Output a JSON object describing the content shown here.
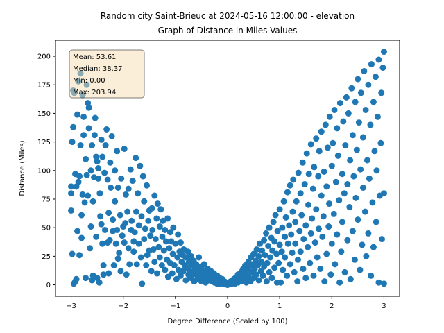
{
  "chart_data": {
    "type": "scatter",
    "title": "Random city Saint-Brieuc at 2024-05-16 12:00:00  - elevation",
    "subtitle": "Graph of Distance in Miles Values",
    "xlabel": "Degree Difference (Scaled by 100)",
    "ylabel": "Distance (Miles)",
    "xlim": [
      -3.3,
      3.3
    ],
    "ylim": [
      -10,
      214
    ],
    "xticks": [
      -3,
      -2,
      -1,
      0,
      1,
      2,
      3
    ],
    "yticks": [
      0,
      25,
      50,
      75,
      100,
      125,
      150,
      175,
      200
    ],
    "grid": false,
    "marker_color": "#1f77b4",
    "stats": {
      "mean": "Mean: 53.61",
      "median": "Median: 38.37",
      "min": "Min: 0.00",
      "max": "Max: 203.94"
    },
    "stats_box_position": "top-left",
    "points": [
      [
        -3.0,
        86
      ],
      [
        -3.0,
        80
      ],
      [
        -3.0,
        65
      ],
      [
        -2.98,
        27
      ],
      [
        -2.98,
        125
      ],
      [
        -2.96,
        138
      ],
      [
        -2.96,
        170
      ],
      [
        -2.95,
        1
      ],
      [
        -2.94,
        168
      ],
      [
        -2.92,
        3
      ],
      [
        -2.92,
        97
      ],
      [
        -2.9,
        86
      ],
      [
        -2.9,
        5
      ],
      [
        -2.88,
        149
      ],
      [
        -2.88,
        47
      ],
      [
        -2.86,
        178
      ],
      [
        -2.86,
        90
      ],
      [
        -2.84,
        95
      ],
      [
        -2.84,
        26
      ],
      [
        -2.82,
        122
      ],
      [
        -2.82,
        185
      ],
      [
        -2.8,
        41
      ],
      [
        -2.8,
        61
      ],
      [
        -2.78,
        79
      ],
      [
        -2.78,
        166
      ],
      [
        -2.76,
        147
      ],
      [
        -2.76,
        131
      ],
      [
        -2.74,
        72
      ],
      [
        -2.72,
        110
      ],
      [
        -2.72,
        6
      ],
      [
        -2.7,
        175
      ],
      [
        -2.7,
        96
      ],
      [
        -2.68,
        159
      ],
      [
        -2.68,
        78
      ],
      [
        -2.66,
        155
      ],
      [
        -2.66,
        137
      ],
      [
        -2.64,
        32
      ],
      [
        -2.62,
        51
      ],
      [
        -2.62,
        100
      ],
      [
        -2.6,
        4
      ],
      [
        -2.6,
        122
      ],
      [
        -2.58,
        8
      ],
      [
        -2.58,
        73
      ],
      [
        -2.56,
        94
      ],
      [
        -2.55,
        131
      ],
      [
        -2.54,
        146
      ],
      [
        -2.52,
        42
      ],
      [
        -2.52,
        112
      ],
      [
        -2.5,
        6
      ],
      [
        -2.5,
        108
      ],
      [
        -2.48,
        93
      ],
      [
        -2.48,
        102
      ],
      [
        -2.46,
        2
      ],
      [
        -2.45,
        80
      ],
      [
        -2.44,
        60
      ],
      [
        -2.42,
        127
      ],
      [
        -2.42,
        53
      ],
      [
        -2.4,
        36
      ],
      [
        -2.4,
        112
      ],
      [
        -2.38,
        17
      ],
      [
        -2.38,
        9
      ],
      [
        -2.36,
        98
      ],
      [
        -2.35,
        48
      ],
      [
        -2.34,
        122
      ],
      [
        -2.32,
        136
      ],
      [
        -2.3,
        37
      ],
      [
        -2.3,
        92
      ],
      [
        -2.28,
        63
      ],
      [
        -2.28,
        10
      ],
      [
        -2.26,
        39
      ],
      [
        -2.25,
        107
      ],
      [
        -2.24,
        85
      ],
      [
        -2.22,
        130
      ],
      [
        -2.2,
        47
      ],
      [
        -2.2,
        57
      ],
      [
        -2.18,
        17
      ],
      [
        -2.16,
        73
      ],
      [
        -2.16,
        100
      ],
      [
        -2.14,
        36
      ],
      [
        -2.12,
        117
      ],
      [
        -2.12,
        48
      ],
      [
        -2.1,
        23
      ],
      [
        -2.1,
        85
      ],
      [
        -2.08,
        28
      ],
      [
        -2.06,
        61
      ],
      [
        -2.05,
        12
      ],
      [
        -2.04,
        93
      ],
      [
        -2.02,
        43
      ],
      [
        -2.0,
        51
      ],
      [
        -1.98,
        37
      ],
      [
        -1.98,
        119
      ],
      [
        -1.96,
        54
      ],
      [
        -1.95,
        79
      ],
      [
        -1.94,
        9
      ],
      [
        -1.92,
        64
      ],
      [
        -1.9,
        32
      ],
      [
        -1.9,
        84
      ],
      [
        -1.88,
        18
      ],
      [
        -1.86,
        101
      ],
      [
        -1.85,
        48
      ],
      [
        -1.84,
        56
      ],
      [
        -1.82,
        91
      ],
      [
        -1.8,
        38
      ],
      [
        -1.8,
        29
      ],
      [
        -1.78,
        46
      ],
      [
        -1.76,
        111
      ],
      [
        -1.75,
        64
      ],
      [
        -1.74,
        18
      ],
      [
        -1.72,
        80
      ],
      [
        -1.7,
        36
      ],
      [
        -1.7,
        52
      ],
      [
        -1.68,
        104
      ],
      [
        -1.66,
        24
      ],
      [
        -1.65,
        60
      ],
      [
        -1.64,
        1
      ],
      [
        -1.62,
        95
      ],
      [
        -1.6,
        73
      ],
      [
        -1.6,
        40
      ],
      [
        -1.58,
        49
      ],
      [
        -1.56,
        17
      ],
      [
        -1.55,
        87
      ],
      [
        -1.54,
        26
      ],
      [
        -1.52,
        56
      ],
      [
        -1.5,
        30
      ],
      [
        -1.5,
        65
      ],
      [
        -1.48,
        43
      ],
      [
        -1.46,
        12
      ],
      [
        -1.45,
        67
      ],
      [
        -1.44,
        48
      ],
      [
        -1.42,
        31
      ],
      [
        -1.4,
        78
      ],
      [
        -1.4,
        20
      ],
      [
        -1.38,
        40
      ],
      [
        -1.36,
        58
      ],
      [
        -1.35,
        10
      ],
      [
        -1.34,
        71
      ],
      [
        -1.32,
        33
      ],
      [
        -1.3,
        51
      ],
      [
        -1.3,
        24
      ],
      [
        -1.28,
        66
      ],
      [
        -1.26,
        17
      ],
      [
        -1.25,
        42
      ],
      [
        -1.24,
        56
      ],
      [
        -1.22,
        30
      ],
      [
        -1.2,
        48
      ],
      [
        -1.2,
        13
      ],
      [
        -1.18,
        38
      ],
      [
        -1.16,
        22
      ],
      [
        -1.15,
        58
      ],
      [
        -1.14,
        7
      ],
      [
        -1.12,
        32
      ],
      [
        -1.1,
        46
      ],
      [
        -1.1,
        19
      ],
      [
        -1.08,
        38
      ],
      [
        -1.06,
        10
      ],
      [
        -1.05,
        27
      ],
      [
        -1.04,
        50
      ],
      [
        -1.02,
        17
      ],
      [
        -1.0,
        36
      ],
      [
        -0.98,
        5
      ],
      [
        -0.96,
        24
      ],
      [
        -0.95,
        44
      ],
      [
        -0.94,
        13
      ],
      [
        -0.92,
        29
      ],
      [
        -0.9,
        8
      ],
      [
        -0.9,
        37
      ],
      [
        -0.88,
        20
      ],
      [
        -0.86,
        26
      ],
      [
        -0.85,
        12
      ],
      [
        -0.84,
        31
      ],
      [
        -0.82,
        17
      ],
      [
        -0.8,
        4
      ],
      [
        -0.8,
        24
      ],
      [
        -0.78,
        15
      ],
      [
        -0.76,
        29
      ],
      [
        -0.75,
        9
      ],
      [
        -0.74,
        20
      ],
      [
        -0.72,
        12
      ],
      [
        -0.7,
        25
      ],
      [
        -0.7,
        6
      ],
      [
        -0.68,
        17
      ],
      [
        -0.66,
        10
      ],
      [
        -0.65,
        21
      ],
      [
        -0.64,
        3
      ],
      [
        -0.62,
        14
      ],
      [
        -0.6,
        9
      ],
      [
        -0.6,
        18
      ],
      [
        -0.58,
        5
      ],
      [
        -0.56,
        12
      ],
      [
        -0.55,
        24
      ],
      [
        -0.54,
        7
      ],
      [
        -0.52,
        16
      ],
      [
        -0.5,
        3
      ],
      [
        -0.5,
        10
      ],
      [
        -0.48,
        13
      ],
      [
        -0.46,
        6
      ],
      [
        -0.45,
        18
      ],
      [
        -0.44,
        9
      ],
      [
        -0.42,
        2
      ],
      [
        -0.4,
        11
      ],
      [
        -0.4,
        7
      ],
      [
        -0.38,
        14
      ],
      [
        -0.36,
        4
      ],
      [
        -0.35,
        9
      ],
      [
        -0.34,
        6
      ],
      [
        -0.32,
        12
      ],
      [
        -0.3,
        3
      ],
      [
        -0.3,
        8
      ],
      [
        -0.28,
        5
      ],
      [
        -0.26,
        10
      ],
      [
        -0.25,
        2
      ],
      [
        -0.24,
        7
      ],
      [
        -0.22,
        4
      ],
      [
        -0.2,
        8
      ],
      [
        -0.2,
        1
      ],
      [
        -0.18,
        5
      ],
      [
        -0.16,
        3
      ],
      [
        -0.15,
        6
      ],
      [
        -0.14,
        1
      ],
      [
        -0.12,
        4
      ],
      [
        -0.1,
        2
      ],
      [
        -0.1,
        5
      ],
      [
        -0.08,
        1
      ],
      [
        -0.06,
        3
      ],
      [
        -0.05,
        0.5
      ],
      [
        -0.04,
        2
      ],
      [
        -0.02,
        1
      ],
      [
        0.0,
        0
      ],
      [
        0.02,
        1
      ],
      [
        0.04,
        2
      ],
      [
        0.05,
        0.5
      ],
      [
        0.06,
        3
      ],
      [
        0.08,
        1
      ],
      [
        0.1,
        4
      ],
      [
        0.1,
        2
      ],
      [
        0.12,
        5
      ],
      [
        0.14,
        1
      ],
      [
        0.15,
        6
      ],
      [
        0.16,
        3
      ],
      [
        0.18,
        7
      ],
      [
        0.2,
        2
      ],
      [
        0.2,
        9
      ],
      [
        0.22,
        4
      ],
      [
        0.24,
        10
      ],
      [
        0.25,
        6
      ],
      [
        0.26,
        3
      ],
      [
        0.28,
        12
      ],
      [
        0.3,
        8
      ],
      [
        0.3,
        14
      ],
      [
        0.32,
        5
      ],
      [
        0.34,
        17
      ],
      [
        0.35,
        10
      ],
      [
        0.36,
        2
      ],
      [
        0.38,
        13
      ],
      [
        0.4,
        20
      ],
      [
        0.4,
        7
      ],
      [
        0.42,
        16
      ],
      [
        0.44,
        3
      ],
      [
        0.45,
        24
      ],
      [
        0.46,
        11
      ],
      [
        0.48,
        18
      ],
      [
        0.5,
        6
      ],
      [
        0.5,
        27
      ],
      [
        0.52,
        14
      ],
      [
        0.54,
        21
      ],
      [
        0.55,
        9
      ],
      [
        0.56,
        31
      ],
      [
        0.58,
        17
      ],
      [
        0.6,
        4
      ],
      [
        0.6,
        25
      ],
      [
        0.62,
        36
      ],
      [
        0.64,
        12
      ],
      [
        0.65,
        20
      ],
      [
        0.66,
        30
      ],
      [
        0.68,
        8
      ],
      [
        0.7,
        39
      ],
      [
        0.7,
        16
      ],
      [
        0.72,
        26
      ],
      [
        0.74,
        45
      ],
      [
        0.75,
        3
      ],
      [
        0.76,
        19
      ],
      [
        0.78,
        34
      ],
      [
        0.8,
        11
      ],
      [
        0.8,
        50
      ],
      [
        0.82,
        24
      ],
      [
        0.84,
        41
      ],
      [
        0.85,
        6
      ],
      [
        0.86,
        30
      ],
      [
        0.88,
        55
      ],
      [
        0.9,
        15
      ],
      [
        0.9,
        38
      ],
      [
        0.92,
        61
      ],
      [
        0.94,
        27
      ],
      [
        0.95,
        2
      ],
      [
        0.96,
        47
      ],
      [
        0.98,
        19
      ],
      [
        1.0,
        35
      ],
      [
        1.0,
        66
      ],
      [
        1.02,
        2
      ],
      [
        1.04,
        29
      ],
      [
        1.05,
        50
      ],
      [
        1.06,
        13
      ],
      [
        1.08,
        73
      ],
      [
        1.1,
        42
      ],
      [
        1.1,
        24
      ],
      [
        1.12,
        59
      ],
      [
        1.14,
        8
      ],
      [
        1.15,
        81
      ],
      [
        1.16,
        36
      ],
      [
        1.18,
        52
      ],
      [
        1.2,
        18
      ],
      [
        1.2,
        87
      ],
      [
        1.22,
        44
      ],
      [
        1.24,
        28
      ],
      [
        1.25,
        64
      ],
      [
        1.26,
        92
      ],
      [
        1.28,
        11
      ],
      [
        1.3,
        55
      ],
      [
        1.3,
        36
      ],
      [
        1.32,
        73
      ],
      [
        1.34,
        3
      ],
      [
        1.35,
        22
      ],
      [
        1.36,
        98
      ],
      [
        1.38,
        47
      ],
      [
        1.4,
        80
      ],
      [
        1.4,
        29
      ],
      [
        1.42,
        61
      ],
      [
        1.44,
        107
      ],
      [
        1.45,
        14
      ],
      [
        1.46,
        40
      ],
      [
        1.48,
        88
      ],
      [
        1.5,
        52
      ],
      [
        1.5,
        6
      ],
      [
        1.52,
        115
      ],
      [
        1.54,
        33
      ],
      [
        1.55,
        70
      ],
      [
        1.56,
        97
      ],
      [
        1.58,
        19
      ],
      [
        1.6,
        45
      ],
      [
        1.6,
        123
      ],
      [
        1.62,
        58
      ],
      [
        1.64,
        84
      ],
      [
        1.65,
        8
      ],
      [
        1.66,
        103
      ],
      [
        1.68,
        37
      ],
      [
        1.7,
        128
      ],
      [
        1.7,
        66
      ],
      [
        1.72,
        24
      ],
      [
        1.74,
        95
      ],
      [
        1.75,
        49
      ],
      [
        1.76,
        117
      ],
      [
        1.78,
        14
      ],
      [
        1.8,
        78
      ],
      [
        1.8,
        134
      ],
      [
        1.82,
        42
      ],
      [
        1.84,
        60
      ],
      [
        1.85,
        99
      ],
      [
        1.86,
        3
      ],
      [
        1.88,
        140
      ],
      [
        1.9,
        27
      ],
      [
        1.9,
        86
      ],
      [
        1.92,
        120
      ],
      [
        1.94,
        51
      ],
      [
        1.95,
        71
      ],
      [
        1.96,
        147
      ],
      [
        1.98,
        9
      ],
      [
        2.0,
        104
      ],
      [
        2.0,
        36
      ],
      [
        2.02,
        124
      ],
      [
        2.04,
        62
      ],
      [
        2.05,
        153
      ],
      [
        2.06,
        18
      ],
      [
        2.08,
        90
      ],
      [
        2.1,
        44
      ],
      [
        2.1,
        137
      ],
      [
        2.12,
        113
      ],
      [
        2.14,
        74
      ],
      [
        2.15,
        2
      ],
      [
        2.16,
        159
      ],
      [
        2.18,
        29
      ],
      [
        2.2,
        97
      ],
      [
        2.2,
        55
      ],
      [
        2.22,
        143
      ],
      [
        2.24,
        80
      ],
      [
        2.25,
        11
      ],
      [
        2.26,
        122
      ],
      [
        2.28,
        164
      ],
      [
        2.3,
        39
      ],
      [
        2.3,
        88
      ],
      [
        2.32,
        150
      ],
      [
        2.34,
        68
      ],
      [
        2.35,
        109
      ],
      [
        2.36,
        5
      ],
      [
        2.38,
        172
      ],
      [
        2.4,
        47
      ],
      [
        2.4,
        131
      ],
      [
        2.42,
        95
      ],
      [
        2.44,
        22
      ],
      [
        2.45,
        160
      ],
      [
        2.46,
        76
      ],
      [
        2.48,
        118
      ],
      [
        2.5,
        180
      ],
      [
        2.5,
        57
      ],
      [
        2.52,
        142
      ],
      [
        2.54,
        13
      ],
      [
        2.55,
        101
      ],
      [
        2.56,
        168
      ],
      [
        2.58,
        35
      ],
      [
        2.6,
        85
      ],
      [
        2.6,
        129
      ],
      [
        2.62,
        187
      ],
      [
        2.64,
        64
      ],
      [
        2.65,
        153
      ],
      [
        2.66,
        25
      ],
      [
        2.68,
        109
      ],
      [
        2.7,
        175
      ],
      [
        2.7,
        45
      ],
      [
        2.72,
        93
      ],
      [
        2.74,
        140
      ],
      [
        2.75,
        8
      ],
      [
        2.76,
        193
      ],
      [
        2.78,
        72
      ],
      [
        2.8,
        160
      ],
      [
        2.8,
        33
      ],
      [
        2.82,
        117
      ],
      [
        2.84,
        182
      ],
      [
        2.85,
        55
      ],
      [
        2.86,
        100
      ],
      [
        2.88,
        147
      ],
      [
        2.9,
        2
      ],
      [
        2.9,
        197
      ],
      [
        2.92,
        78
      ],
      [
        2.94,
        124
      ],
      [
        2.95,
        168
      ],
      [
        2.96,
        40
      ],
      [
        2.98,
        190
      ],
      [
        3.0,
        203.94
      ],
      [
        3.0,
        80
      ],
      [
        3.0,
        1
      ]
    ]
  }
}
